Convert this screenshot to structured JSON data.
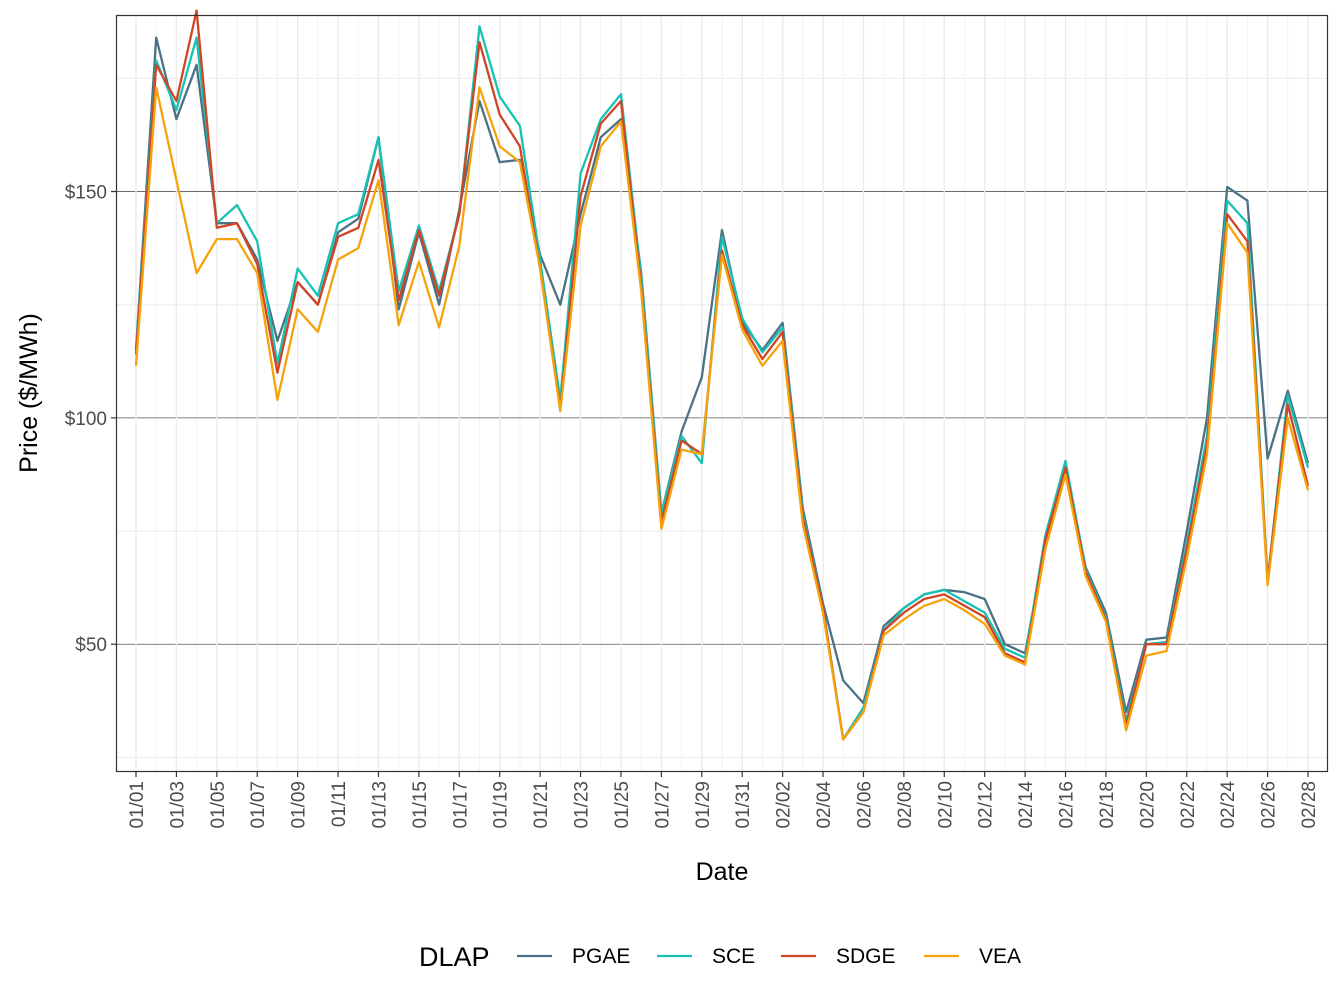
{
  "chart_data": {
    "type": "line",
    "xlabel": "Date",
    "ylabel": "Price ($/MWh)",
    "y_ticks": [
      50,
      100,
      150
    ],
    "y_tick_labels": [
      "$50",
      "$100",
      "$150"
    ],
    "ylim": [
      22,
      189
    ],
    "x": [
      "01/01",
      "01/02",
      "01/03",
      "01/04",
      "01/05",
      "01/06",
      "01/07",
      "01/08",
      "01/09",
      "01/10",
      "01/11",
      "01/12",
      "01/13",
      "01/14",
      "01/15",
      "01/16",
      "01/17",
      "01/18",
      "01/19",
      "01/20",
      "01/21",
      "01/22",
      "01/23",
      "01/24",
      "01/25",
      "01/26",
      "01/27",
      "01/28",
      "01/29",
      "01/30",
      "01/31",
      "02/01",
      "02/02",
      "02/03",
      "02/04",
      "02/05",
      "02/06",
      "02/07",
      "02/08",
      "02/09",
      "02/10",
      "02/11",
      "02/12",
      "02/13",
      "02/14",
      "02/15",
      "02/16",
      "02/17",
      "02/18",
      "02/19",
      "02/20",
      "02/21",
      "02/22",
      "02/23",
      "02/24",
      "02/25",
      "02/26",
      "02/27",
      "02/28"
    ],
    "x_tick_labels": [
      "01/01",
      "01/03",
      "01/05",
      "01/07",
      "01/09",
      "01/11",
      "01/13",
      "01/15",
      "01/17",
      "01/19",
      "01/21",
      "01/23",
      "01/25",
      "01/27",
      "01/29",
      "01/31",
      "02/02",
      "02/04",
      "02/06",
      "02/08",
      "02/10",
      "02/12",
      "02/14",
      "02/16",
      "02/18",
      "02/20",
      "02/22",
      "02/24",
      "02/26",
      "02/28"
    ],
    "grid": true,
    "legend": {
      "title": "DLAP",
      "position": "bottom"
    },
    "series": [
      {
        "name": "PGAE",
        "color": "#4b7185",
        "values": [
          115,
          184,
          166,
          178,
          143,
          143,
          135,
          117,
          130,
          125,
          141,
          144,
          162,
          124,
          141,
          125,
          146,
          170,
          156.5,
          157,
          136,
          125,
          145,
          162,
          166,
          132,
          79,
          97,
          109,
          141.5,
          121,
          115,
          121,
          80,
          59,
          42,
          37,
          54,
          58,
          61,
          62,
          61.5,
          60,
          50,
          48,
          72,
          89,
          67,
          57,
          35,
          51,
          51.5,
          75,
          100,
          151,
          148,
          91,
          106,
          90
        ]
      },
      {
        "name": "SCE",
        "color": "#17c2b4",
        "values": [
          115,
          179,
          168,
          184,
          143,
          147,
          139,
          112,
          133,
          127,
          143,
          145,
          162,
          128,
          142.5,
          128,
          145,
          186.5,
          171,
          164.5,
          135,
          104,
          154,
          166,
          171.5,
          131,
          79,
          96,
          90,
          140,
          122,
          114.5,
          120,
          79,
          58,
          29,
          36,
          53,
          58,
          61,
          62,
          59.5,
          57,
          49,
          47,
          74,
          90.5,
          66.5,
          56,
          33,
          50,
          50.5,
          72,
          96,
          148,
          143,
          64,
          105,
          89
        ]
      },
      {
        "name": "SDGE",
        "color": "#d14425",
        "values": [
          114,
          178,
          170,
          190,
          142,
          143,
          134,
          110,
          130,
          125,
          140,
          142,
          157,
          126,
          141.5,
          127,
          145,
          183,
          167,
          160,
          133,
          102,
          149,
          165,
          170,
          129,
          77,
          95,
          92,
          137,
          120.5,
          113,
          119,
          78,
          58,
          29,
          35,
          53,
          57,
          60,
          61,
          58.5,
          56,
          48,
          46,
          73,
          89,
          66,
          55.5,
          32,
          50,
          50,
          71,
          94,
          145,
          139,
          64,
          103,
          85
        ]
      },
      {
        "name": "VEA",
        "color": "#f5a30b",
        "values": [
          111.5,
          173,
          152.5,
          132,
          139.5,
          139.5,
          132,
          104,
          124,
          119,
          135,
          137.5,
          152.5,
          120.5,
          134.5,
          120,
          138,
          173,
          160,
          156.5,
          133,
          101.5,
          142.5,
          160,
          165.5,
          128,
          75.5,
          93,
          92,
          136,
          119.5,
          111.5,
          117,
          76.5,
          57,
          29,
          35,
          52,
          55.5,
          58.5,
          60,
          57.5,
          54.5,
          47.5,
          45.5,
          71,
          87.5,
          65,
          55,
          31,
          47.5,
          48.5,
          69,
          92,
          143,
          136.5,
          63,
          100,
          84
        ]
      }
    ]
  }
}
